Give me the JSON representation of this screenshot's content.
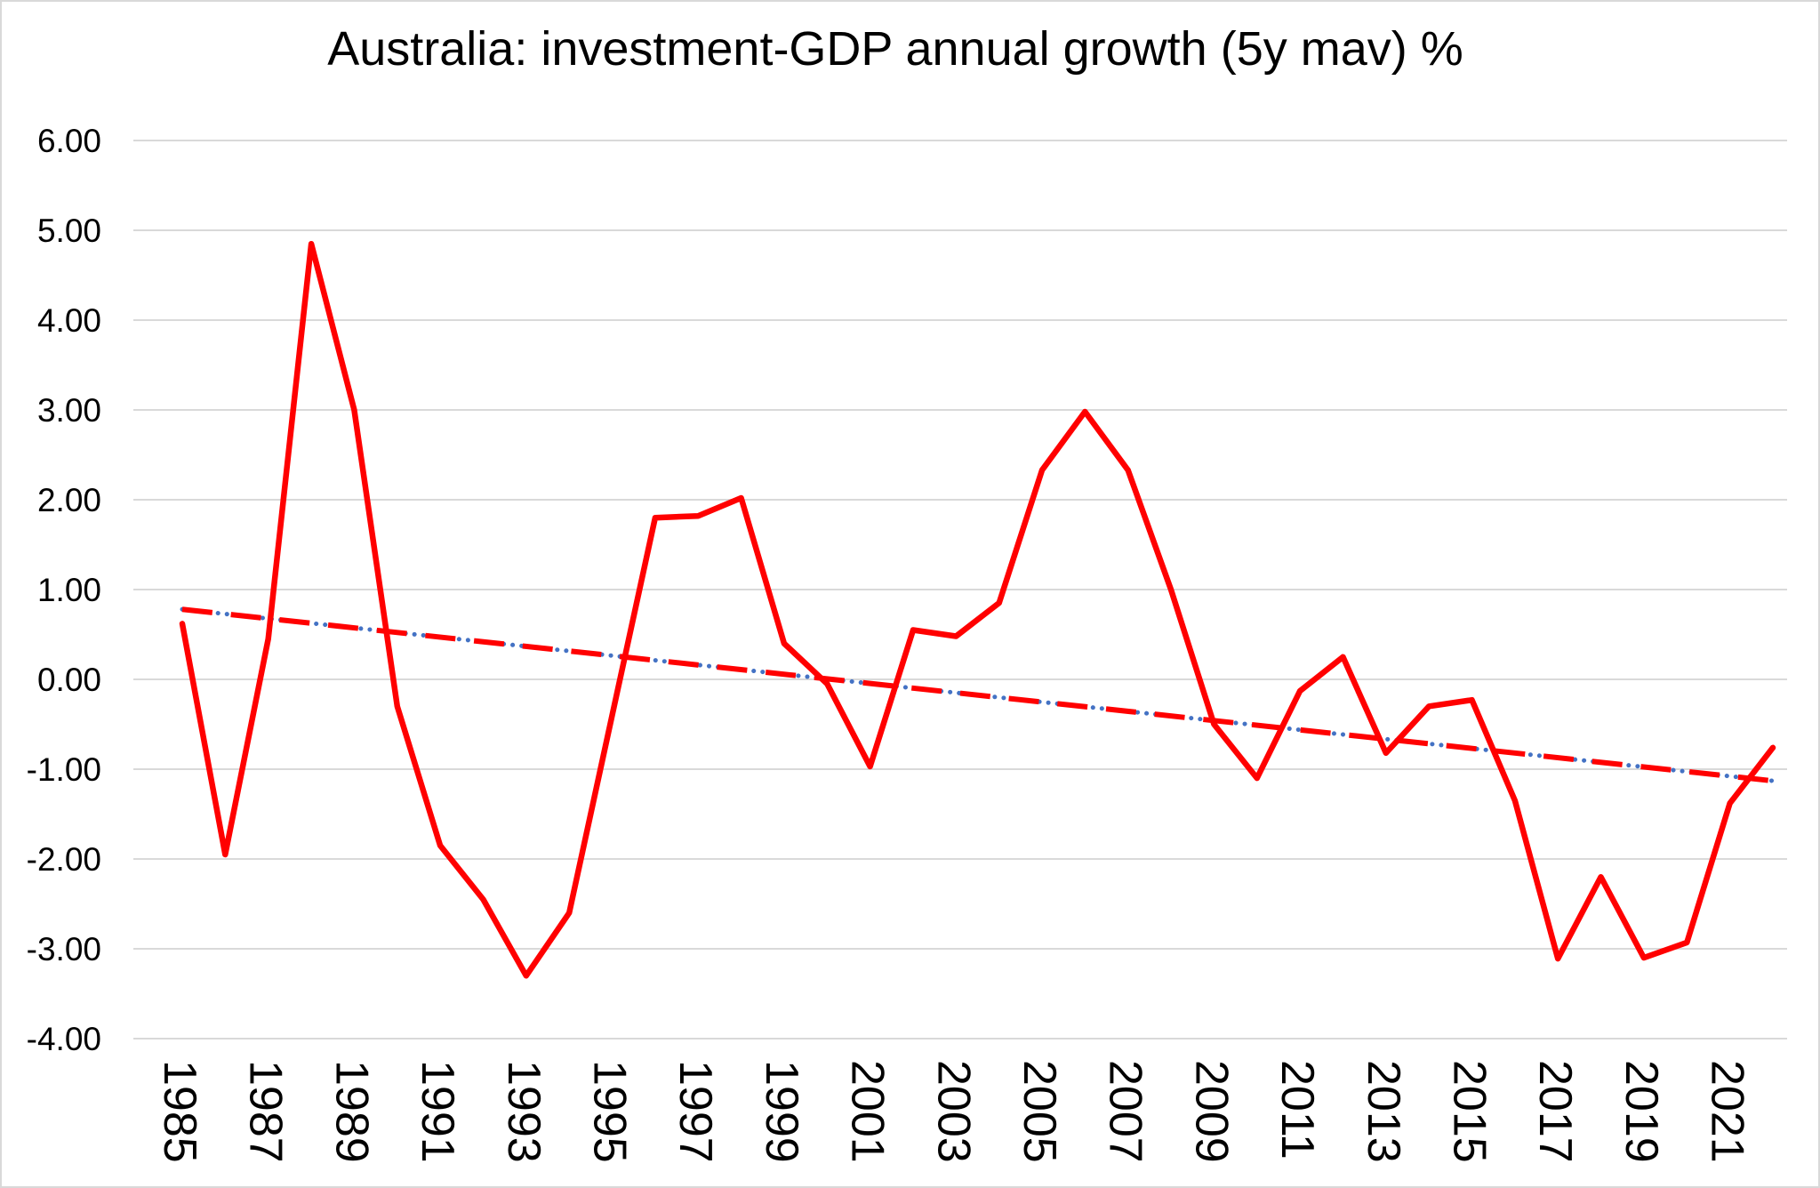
{
  "chart_data": {
    "type": "line",
    "title": "Australia: investment-GDP annual growth (5y mav) %",
    "xlabel": "",
    "ylabel": "",
    "x": [
      1985,
      1986,
      1987,
      1988,
      1989,
      1990,
      1991,
      1992,
      1993,
      1994,
      1995,
      1996,
      1997,
      1998,
      1999,
      2000,
      2001,
      2002,
      2003,
      2004,
      2005,
      2006,
      2007,
      2008,
      2009,
      2010,
      2011,
      2012,
      2013,
      2014,
      2015,
      2016,
      2017,
      2018,
      2019,
      2020,
      2021,
      2022
    ],
    "series": [
      {
        "name": "investment-GDP annual growth (5y mav) %",
        "color": "#ff0000",
        "style": "solid",
        "values": [
          0.62,
          -1.95,
          0.45,
          4.85,
          3.0,
          -0.3,
          -1.85,
          -2.45,
          -3.3,
          -2.6,
          -0.4,
          1.8,
          1.82,
          2.02,
          0.4,
          -0.05,
          -0.97,
          0.55,
          0.48,
          0.85,
          2.33,
          2.98,
          2.33,
          1.0,
          -0.5,
          -1.1,
          -0.13,
          0.25,
          -0.82,
          -0.3,
          -0.23,
          -1.35,
          -3.11,
          -2.2,
          -3.1,
          -2.93,
          -1.38,
          -0.76
        ]
      },
      {
        "name": "linear trend",
        "color": "#ff0000",
        "dot_color": "#4472c4",
        "style": "dash-dot",
        "start_year": 1985,
        "start_value": 0.78,
        "end_year": 2022,
        "end_value": -1.13
      }
    ],
    "ylim": [
      -4,
      6
    ],
    "y_ticks": [
      6,
      5,
      4,
      3,
      2,
      1,
      0,
      -1,
      -2,
      -3,
      -4
    ],
    "y_tick_labels": [
      "6.00",
      "5.00",
      "4.00",
      "3.00",
      "2.00",
      "1.00",
      "0.00",
      "-1.00",
      "-2.00",
      "-3.00",
      "-4.00"
    ],
    "x_tick_labels": [
      "1985",
      "1987",
      "1989",
      "1991",
      "1993",
      "1995",
      "1997",
      "1999",
      "2001",
      "2003",
      "2005",
      "2007",
      "2009",
      "2011",
      "2013",
      "2015",
      "2017",
      "2019",
      "2021"
    ],
    "x_tick_rotation_deg": 90,
    "grid": "horizontal",
    "gridline_color": "#d9d9d9",
    "background": "#ffffff",
    "text_color": "#000000",
    "legend": "none"
  }
}
